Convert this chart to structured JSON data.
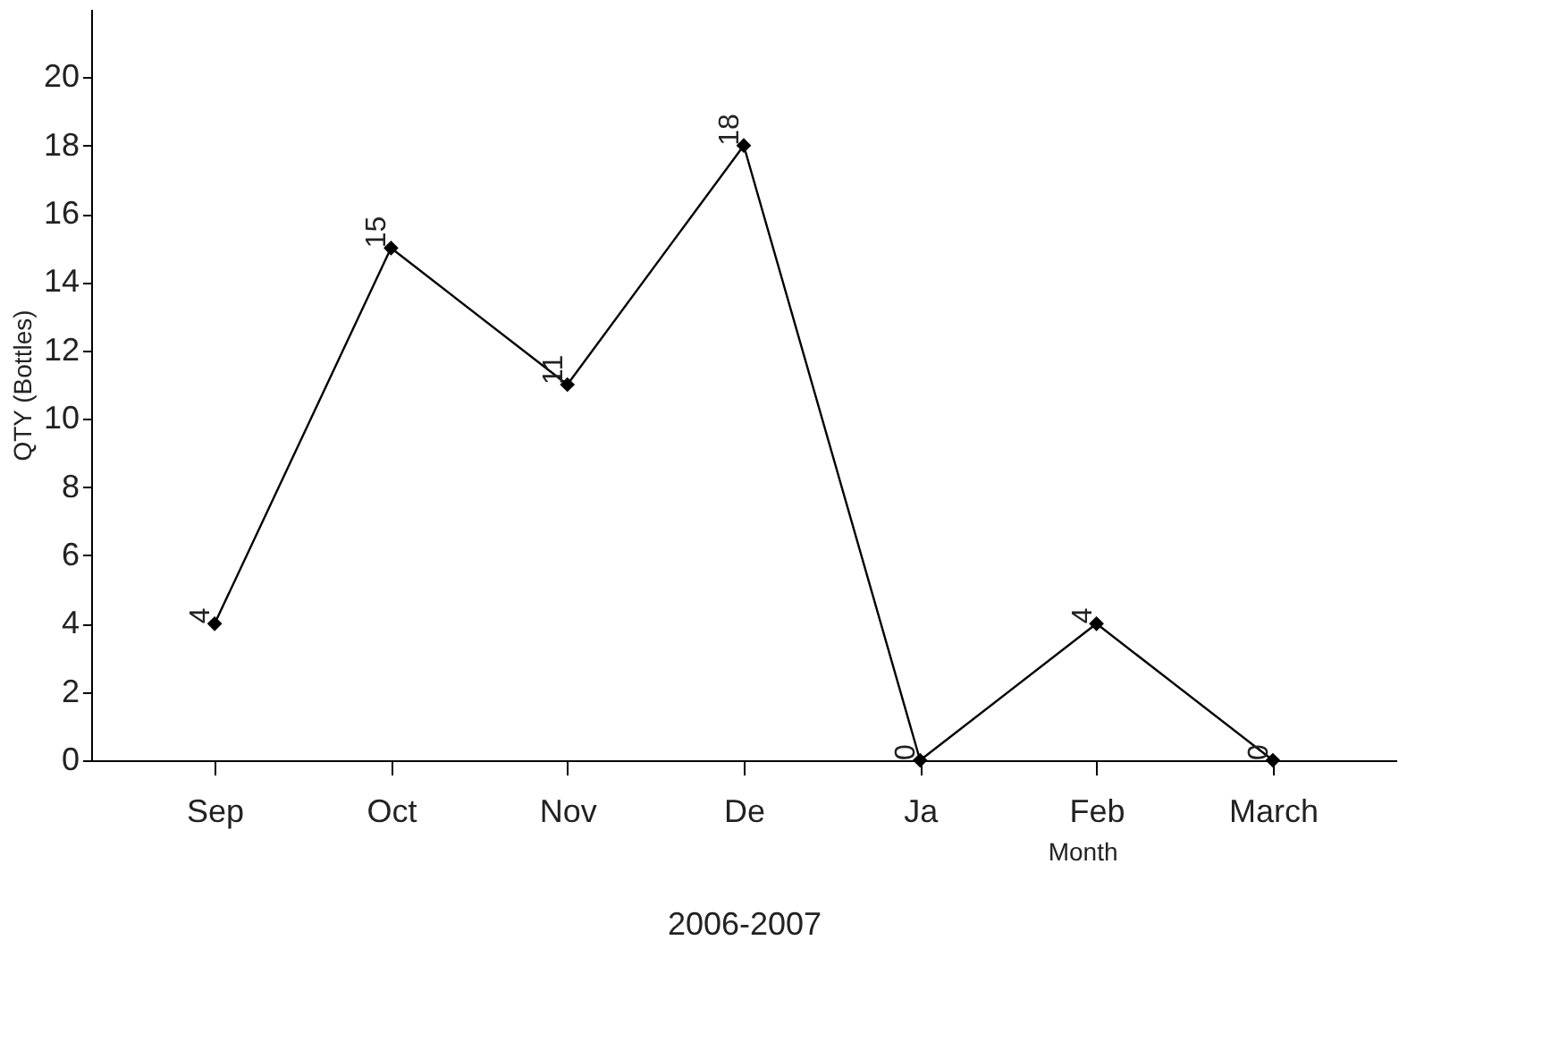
{
  "chart_data": {
    "type": "line",
    "xlabel": "2006-2007",
    "ylabel": "QTY (Bottles)",
    "annotations": [
      "Month"
    ],
    "categories": [
      "Sep",
      "Oct",
      "Nov",
      "De",
      "Ja",
      "Feb",
      "March"
    ],
    "values": [
      4,
      15,
      11,
      18,
      0,
      4,
      0
    ],
    "color": "#000000",
    "marker": "diamond",
    "line_style": "solid",
    "data_labels": true,
    "grid": false,
    "ylim": [
      0,
      22
    ],
    "yticks": [
      0,
      2,
      4,
      6,
      8,
      10,
      12,
      14,
      16,
      18,
      20
    ]
  }
}
